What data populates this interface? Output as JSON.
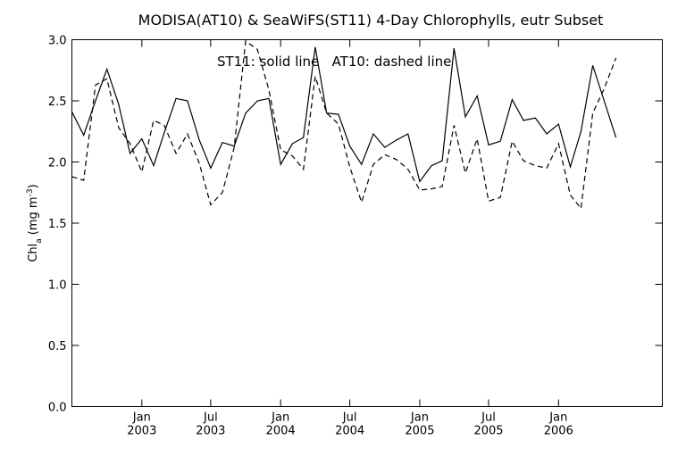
{
  "chart_data": {
    "type": "line",
    "title": "MODISA(AT10) & SeaWiFS(ST11) 4-Day Chlorophylls, eutr Subset",
    "annotation": "ST11: solid line   AT10: dashed line",
    "ylabel": {
      "main": "Chl",
      "sub": "a",
      "units": "(mg m",
      "sup": "-3",
      "close": ")"
    },
    "xlim": [
      "2002-07-01",
      "2006-10-01"
    ],
    "ylim": [
      0.0,
      3.0
    ],
    "grid": false,
    "yticks": [
      "0.0",
      "0.5",
      "1.0",
      "1.5",
      "2.0",
      "2.5",
      "3.0"
    ],
    "xticks": [
      {
        "date": "2003-01-01",
        "month": "Jan",
        "year": "2003"
      },
      {
        "date": "2003-07-01",
        "month": "Jul",
        "year": "2003"
      },
      {
        "date": "2004-01-01",
        "month": "Jan",
        "year": "2004"
      },
      {
        "date": "2004-07-01",
        "month": "Jul",
        "year": "2004"
      },
      {
        "date": "2005-01-01",
        "month": "Jan",
        "year": "2005"
      },
      {
        "date": "2005-07-01",
        "month": "Jul",
        "year": "2005"
      },
      {
        "date": "2006-01-01",
        "month": "Jan",
        "year": "2006"
      }
    ],
    "series": [
      {
        "name": "ST11",
        "style": "solid",
        "color": "#000000",
        "x": [
          "2002-07-01",
          "2002-08-01",
          "2002-09-01",
          "2002-10-01",
          "2002-11-01",
          "2002-12-01",
          "2003-01-01",
          "2003-02-01",
          "2003-03-01",
          "2003-04-01",
          "2003-05-01",
          "2003-06-01",
          "2003-07-01",
          "2003-08-01",
          "2003-09-01",
          "2003-10-01",
          "2003-11-01",
          "2003-12-01",
          "2004-01-01",
          "2004-02-01",
          "2004-03-01",
          "2004-04-01",
          "2004-05-01",
          "2004-06-01",
          "2004-07-01",
          "2004-08-01",
          "2004-09-01",
          "2004-10-01",
          "2004-11-01",
          "2004-12-01",
          "2005-01-01",
          "2005-02-01",
          "2005-03-01",
          "2005-04-01",
          "2005-05-01",
          "2005-06-01",
          "2005-07-01",
          "2005-08-01",
          "2005-09-01",
          "2005-10-01",
          "2005-11-01",
          "2005-12-01",
          "2006-01-01",
          "2006-02-01",
          "2006-03-01",
          "2006-04-01",
          "2006-05-01",
          "2006-06-01"
        ],
        "values": [
          2.41,
          2.22,
          2.5,
          2.76,
          2.47,
          2.07,
          2.19,
          1.97,
          2.24,
          2.52,
          2.5,
          2.18,
          1.95,
          2.16,
          2.13,
          2.4,
          2.5,
          2.52,
          1.98,
          2.15,
          2.2,
          2.94,
          2.4,
          2.39,
          2.13,
          1.98,
          2.23,
          2.12,
          2.18,
          2.23,
          1.84,
          1.97,
          2.01,
          2.93,
          2.37,
          2.54,
          2.14,
          2.17,
          2.51,
          2.34,
          2.36,
          2.23,
          2.31,
          1.96,
          2.25,
          2.79,
          2.5,
          2.2
        ]
      },
      {
        "name": "AT10",
        "style": "dashed",
        "color": "#000000",
        "x": [
          "2002-07-01",
          "2002-08-01",
          "2002-09-01",
          "2002-10-01",
          "2002-11-01",
          "2002-12-01",
          "2003-01-01",
          "2003-02-01",
          "2003-03-01",
          "2003-04-01",
          "2003-05-01",
          "2003-06-01",
          "2003-07-01",
          "2003-08-01",
          "2003-09-01",
          "2003-10-01",
          "2003-11-01",
          "2003-12-01",
          "2004-01-01",
          "2004-02-01",
          "2004-03-01",
          "2004-04-01",
          "2004-05-01",
          "2004-06-01",
          "2004-07-01",
          "2004-08-01",
          "2004-09-01",
          "2004-10-01",
          "2004-11-01",
          "2004-12-01",
          "2005-01-01",
          "2005-02-01",
          "2005-03-01",
          "2005-04-01",
          "2005-05-01",
          "2005-06-01",
          "2005-07-01",
          "2005-08-01",
          "2005-09-01",
          "2005-10-01",
          "2005-11-01",
          "2005-12-01",
          "2006-01-01",
          "2006-02-01",
          "2006-03-01",
          "2006-04-01",
          "2006-05-01",
          "2006-06-01"
        ],
        "values": [
          1.88,
          1.85,
          2.63,
          2.68,
          2.28,
          2.15,
          1.92,
          2.34,
          2.3,
          2.07,
          2.23,
          1.99,
          1.65,
          1.75,
          2.12,
          2.99,
          2.92,
          2.59,
          2.1,
          2.05,
          1.94,
          2.7,
          2.4,
          2.31,
          1.96,
          1.67,
          1.98,
          2.06,
          2.02,
          1.94,
          1.77,
          1.78,
          1.8,
          2.3,
          1.91,
          2.19,
          1.68,
          1.71,
          2.17,
          2.01,
          1.97,
          1.95,
          2.15,
          1.73,
          1.62,
          2.4,
          2.6,
          2.85
        ]
      }
    ]
  }
}
